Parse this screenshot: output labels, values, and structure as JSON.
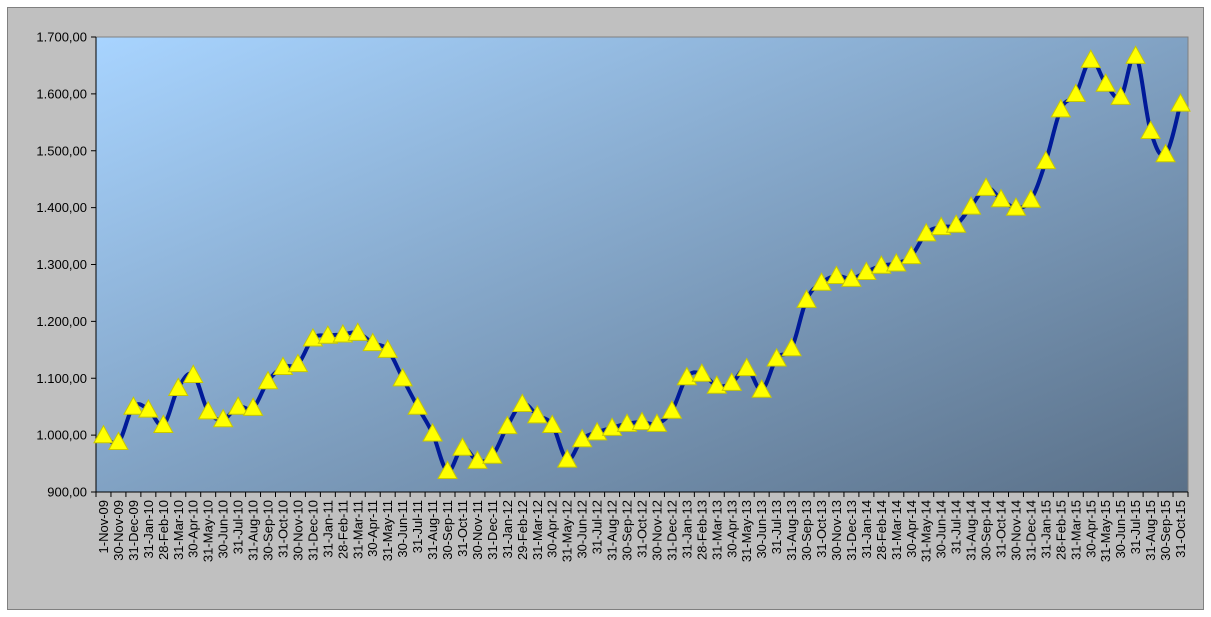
{
  "chart_data": {
    "type": "line",
    "title": "",
    "xlabel": "",
    "ylabel": "",
    "ylim": [
      900,
      1700
    ],
    "y_ticks": [
      "900,00",
      "1.000,00",
      "1.100,00",
      "1.200,00",
      "1.300,00",
      "1.400,00",
      "1.500,00",
      "1.600,00",
      "1.700,00"
    ],
    "y_tick_values": [
      900,
      1000,
      1100,
      1200,
      1300,
      1400,
      1500,
      1600,
      1700
    ],
    "grid": false,
    "legend": "none",
    "marker": "triangle",
    "colors": {
      "line": "#001a99",
      "marker_fill": "#ffff00",
      "marker_stroke": "#c8c800",
      "plot_bg_top_left": "#a8d4ff",
      "plot_bg_bottom_right": "#5a7088",
      "frame_bg": "#c0c0c0"
    },
    "categories": [
      "1-Nov-09",
      "30-Nov-09",
      "31-Dec-09",
      "31-Jan-10",
      "28-Feb-10",
      "31-Mar-10",
      "30-Apr-10",
      "31-May-10",
      "30-Jun-10",
      "31-Jul-10",
      "31-Aug-10",
      "30-Sep-10",
      "31-Oct-10",
      "30-Nov-10",
      "31-Dec-10",
      "31-Jan-11",
      "28-Feb-11",
      "31-Mar-11",
      "30-Apr-11",
      "31-May-11",
      "30-Jun-11",
      "31-Jul-11",
      "31-Aug-11",
      "30-Sep-11",
      "31-Oct-11",
      "30-Nov-11",
      "31-Dec-11",
      "31-Jan-12",
      "29-Feb-12",
      "31-Mar-12",
      "30-Apr-12",
      "31-May-12",
      "30-Jun-12",
      "31-Jul-12",
      "31-Aug-12",
      "30-Sep-12",
      "31-Oct-12",
      "30-Nov-12",
      "31-Dec-12",
      "31-Jan-13",
      "28-Feb-13",
      "31-Mar-13",
      "30-Apr-13",
      "31-May-13",
      "30-Jun-13",
      "31-Jul-13",
      "31-Aug-13",
      "30-Sep-13",
      "31-Oct-13",
      "30-Nov-13",
      "31-Dec-13",
      "31-Jan-14",
      "28-Feb-14",
      "31-Mar-14",
      "30-Apr-14",
      "31-May-14",
      "30-Jun-14",
      "31-Jul-14",
      "31-Aug-14",
      "30-Sep-14",
      "31-Oct-14",
      "30-Nov-14",
      "31-Dec-14",
      "31-Jan-15",
      "28-Feb-15",
      "31-Mar-15",
      "30-Apr-15",
      "31-May-15",
      "30-Jun-15",
      "31-Jul-15",
      "31-Aug-15",
      "30-Sep-15",
      "31-Oct-15"
    ],
    "x_tick_labels": [
      "1-Nov-09",
      "30-Nov-09",
      "31-Dec-09",
      "31-Jan-10",
      "28-Feb-10",
      "31-Mar-10",
      "30-Apr-10",
      "31-May-10",
      "30-Jun-10",
      "31-Jul-10",
      "31-Aug-10",
      "30-Sep-10",
      "31-Oct-10",
      "30-Nov-10",
      "31-Dec-10",
      "31-Jan-11",
      "28-Feb-11",
      "31-Mar-11",
      "30-Apr-11",
      "31-May-11",
      "30-Jun-11",
      "31-Jul-11",
      "31-Aug-11",
      "30-Sep-11",
      "31-Oct-11",
      "30-Nov-11",
      "31-Dec-11",
      "31-Jan-12",
      "29-Feb-12",
      "31-Mar-12",
      "30-Apr-12",
      "31-May-12",
      "30-Jun-12",
      "31-Jul-12",
      "31-Aug-12",
      "30-Sep-12",
      "31-Oct-12",
      "30-Nov-12",
      "31-Dec-12",
      "31-Jan-13",
      "28-Feb-13",
      "31-Mar-13",
      "30-Apr-13",
      "31-May-13",
      "30-Jun-13",
      "31-Jul-13",
      "31-Aug-13",
      "30-Sep-13",
      "31-Oct-13",
      "30-Nov-13",
      "31-Dec-13",
      "31-Jan-14",
      "28-Feb-14",
      "31-Mar-14",
      "30-Apr-14",
      "31-May-14",
      "30-Jun-14",
      "31-Jul-14",
      "31-Aug-14",
      "30-Sep-14",
      "31-Oct-14",
      "30-Nov-14",
      "31-Dec-14",
      "31-Jan-15",
      "28-Feb-15",
      "31-Mar-15",
      "30-Apr-15",
      "31-May-15",
      "30-Jun-15",
      "31-Jul-15",
      "31-Aug-15",
      "30-Sep-15",
      "31-Oct-15"
    ],
    "series": [
      {
        "values": [
          1000,
          988,
          1050,
          1045,
          1018,
          1083,
          1106,
          1042,
          1028,
          1050,
          1048,
          1095,
          1120,
          1125,
          1170,
          1175,
          1177,
          1180,
          1162,
          1150,
          1100,
          1050,
          1003,
          937,
          978,
          955,
          964,
          1016,
          1055,
          1035,
          1018,
          957,
          993,
          1005,
          1013,
          1020,
          1023,
          1020,
          1043,
          1102,
          1108,
          1087,
          1092,
          1118,
          1080,
          1135,
          1153,
          1238,
          1268,
          1280,
          1275,
          1287,
          1298,
          1302,
          1315,
          1355,
          1366,
          1370,
          1402,
          1435,
          1415,
          1400,
          1414,
          1482,
          1573,
          1600,
          1660,
          1618,
          1595,
          1667,
          1535,
          1494,
          1583
        ]
      }
    ]
  }
}
